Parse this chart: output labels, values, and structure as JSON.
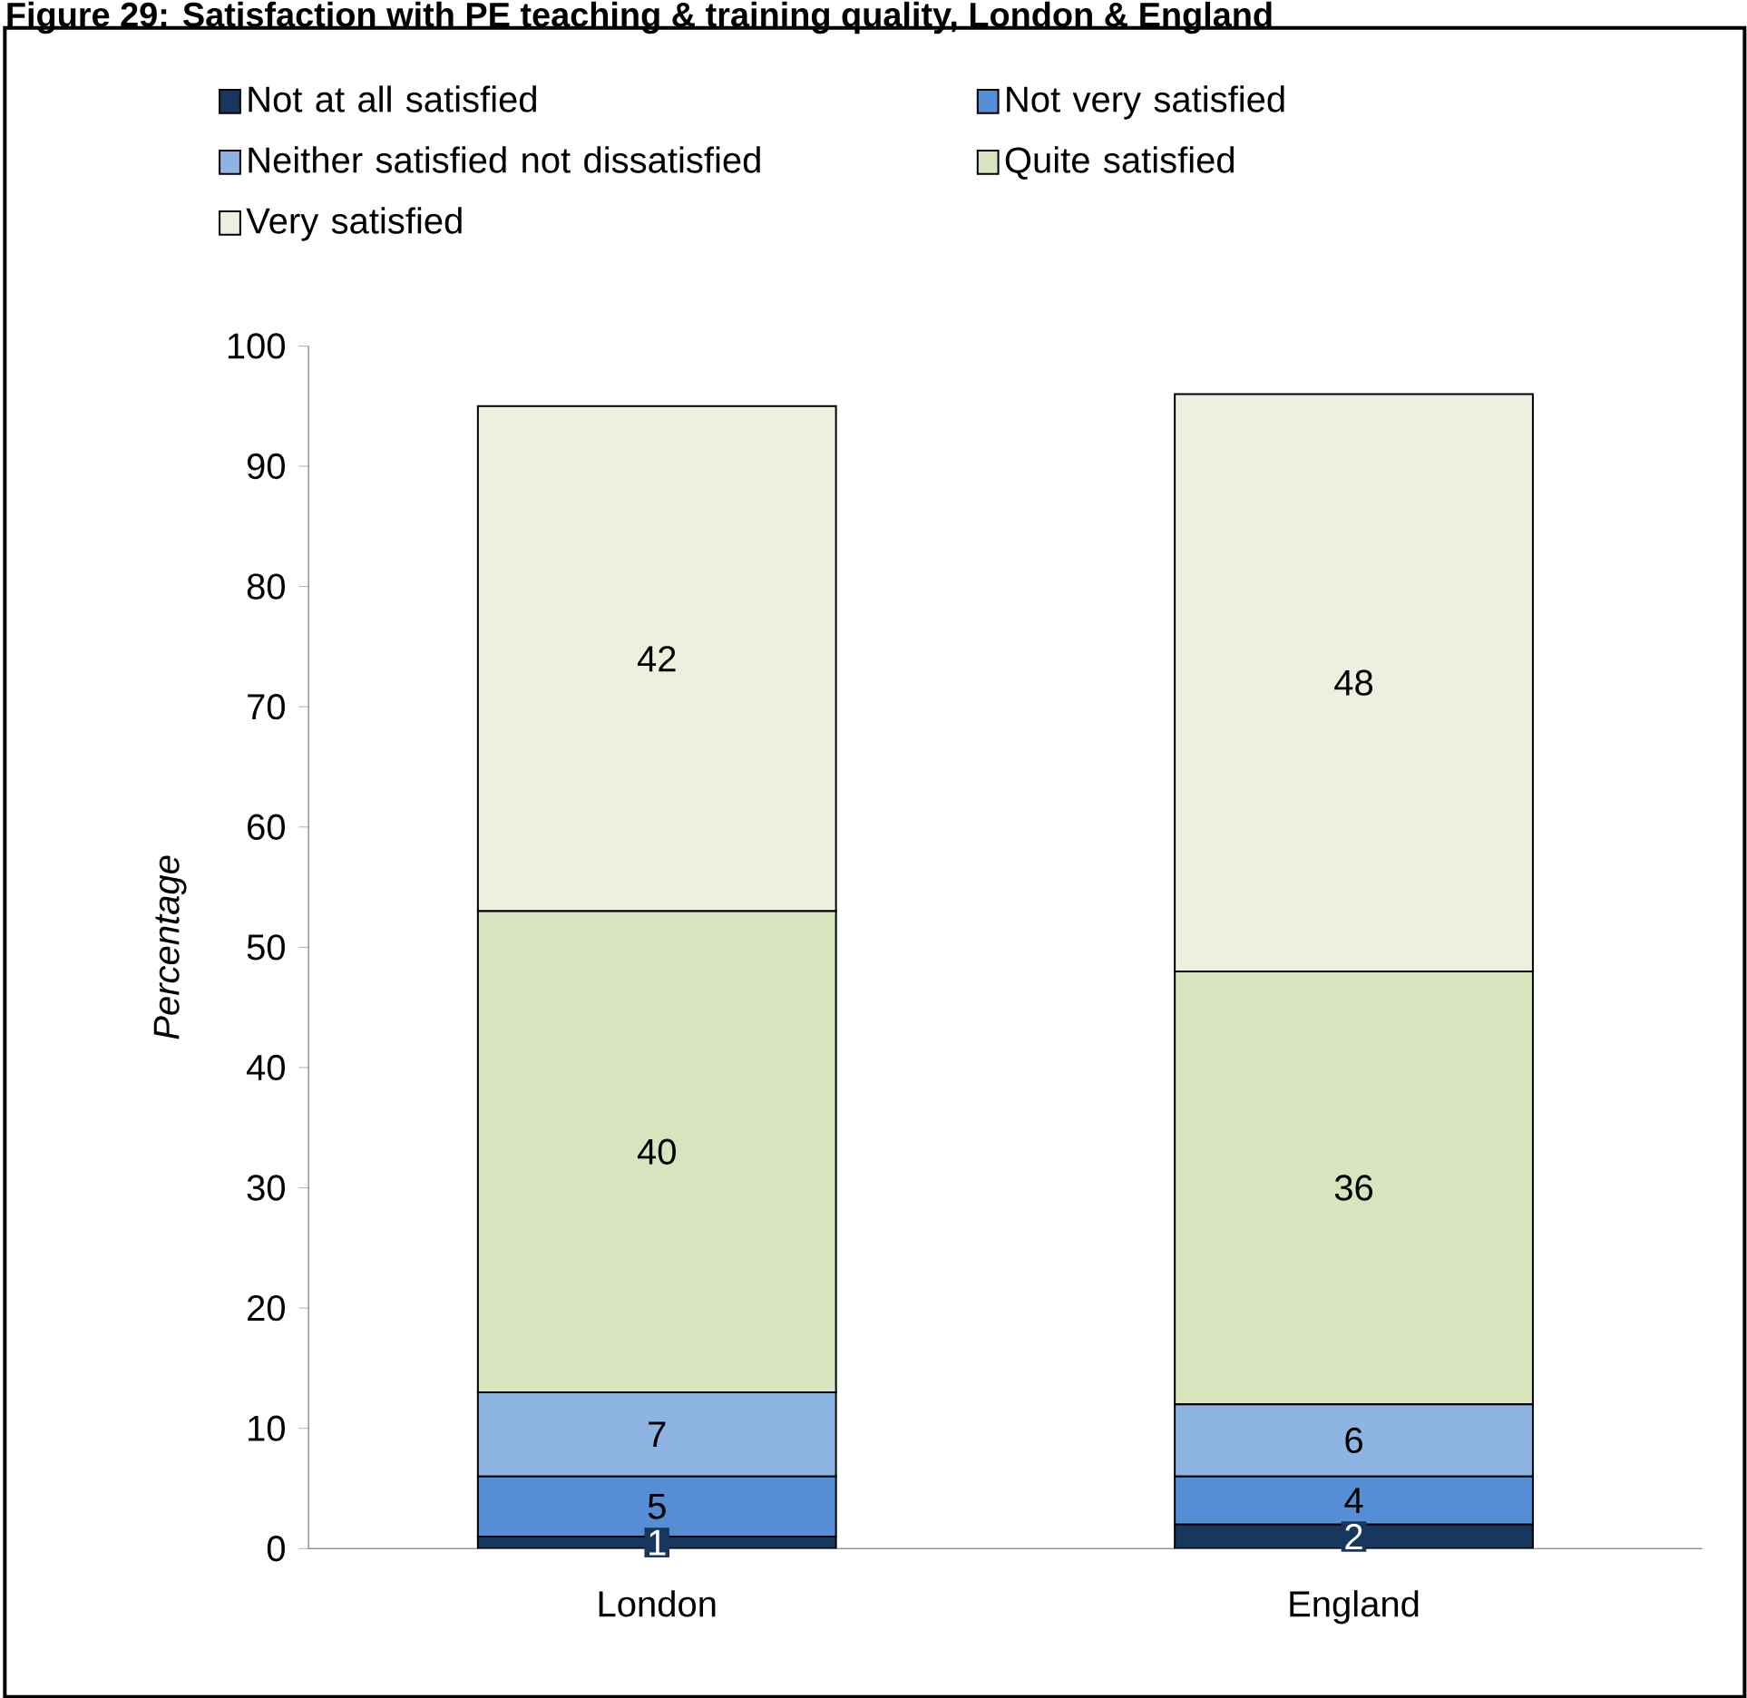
{
  "chart_data": {
    "type": "bar",
    "stacked": true,
    "title": "Figure 29: Satisfaction with PE teaching & training quality, London & England",
    "ylabel": "Percentage",
    "categories": [
      "London",
      "England"
    ],
    "series": [
      {
        "name": "Not at all satisfied",
        "color": "#17375e",
        "values": [
          1,
          2
        ],
        "value_labels": [
          "1",
          "2"
        ]
      },
      {
        "name": "Not very satisfied",
        "color": "#558ed5",
        "values": [
          5,
          4
        ],
        "value_labels": [
          "5",
          "4"
        ]
      },
      {
        "name": "Neither satisfied not dissatisfied",
        "color": "#8eb4e3",
        "values": [
          7,
          6
        ],
        "value_labels": [
          "7",
          "6"
        ]
      },
      {
        "name": "Quite satisfied",
        "color": "#d7e4bd",
        "values": [
          40,
          36
        ],
        "value_labels": [
          "40",
          "36"
        ]
      },
      {
        "name": "Very satisfied",
        "color": "#ebf1de",
        "values": [
          42,
          48
        ],
        "value_labels": [
          "42",
          "48"
        ]
      }
    ],
    "ylim": [
      0,
      100
    ],
    "yticks": [
      0,
      10,
      20,
      30,
      40,
      50,
      60,
      70,
      80,
      90,
      100
    ],
    "grid": false,
    "legend": "top"
  }
}
